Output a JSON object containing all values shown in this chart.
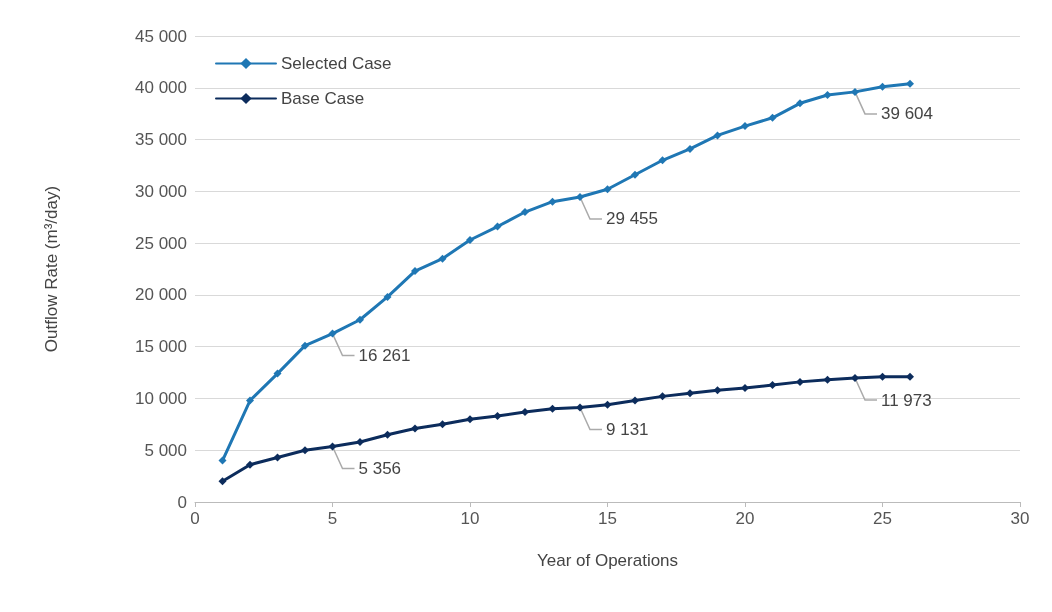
{
  "chart_data": {
    "type": "line",
    "xlabel": "Year of Operations",
    "ylabel": "Outflow Rate (m³/day)",
    "x": [
      1,
      2,
      3,
      4,
      5,
      6,
      7,
      8,
      9,
      10,
      11,
      12,
      13,
      14,
      15,
      16,
      17,
      18,
      19,
      20,
      21,
      22,
      23,
      24,
      25,
      26
    ],
    "series": [
      {
        "name": "Selected Case",
        "color": "#1f77b4",
        "values": [
          4000,
          9800,
          12400,
          15100,
          16261,
          17600,
          19800,
          22300,
          23500,
          25300,
          26600,
          28000,
          29000,
          29455,
          30200,
          31600,
          33000,
          34100,
          35400,
          36300,
          37100,
          38500,
          39300,
          39604,
          40100,
          40400
        ]
      },
      {
        "name": "Base Case",
        "color": "#0c2c5c",
        "values": [
          2000,
          3600,
          4300,
          5000,
          5356,
          5800,
          6500,
          7100,
          7500,
          8000,
          8300,
          8700,
          9000,
          9131,
          9400,
          9800,
          10200,
          10500,
          10800,
          11000,
          11300,
          11600,
          11800,
          11973,
          12100,
          12100
        ]
      }
    ],
    "xlim": [
      0,
      30
    ],
    "xticks": [
      0,
      5,
      10,
      15,
      20,
      25,
      30
    ],
    "ylim": [
      0,
      45000
    ],
    "yticks": [
      0,
      {
        "value": 5000,
        "label": "5 000"
      },
      {
        "value": 10000,
        "label": "10 000"
      },
      {
        "value": 15000,
        "label": "15 000"
      },
      {
        "value": 20000,
        "label": "20 000"
      },
      {
        "value": 25000,
        "label": "25 000"
      },
      {
        "value": 30000,
        "label": "30 000"
      },
      {
        "value": 35000,
        "label": "35 000"
      },
      {
        "value": 40000,
        "label": "40 000"
      },
      {
        "value": 45000,
        "label": "45 000"
      }
    ],
    "annotations": [
      {
        "text": "16 261",
        "x": 5,
        "y": 16261
      },
      {
        "text": "29 455",
        "x": 14,
        "y": 29455
      },
      {
        "text": "39 604",
        "x": 24,
        "y": 39604
      },
      {
        "text": "5 356",
        "x": 5,
        "y": 5356
      },
      {
        "text": "9 131",
        "x": 14,
        "y": 9131
      },
      {
        "text": "11 973",
        "x": 24,
        "y": 11973
      }
    ],
    "grid": "y",
    "legend": "top left",
    "marker": "diamond",
    "line_style": "solid"
  }
}
